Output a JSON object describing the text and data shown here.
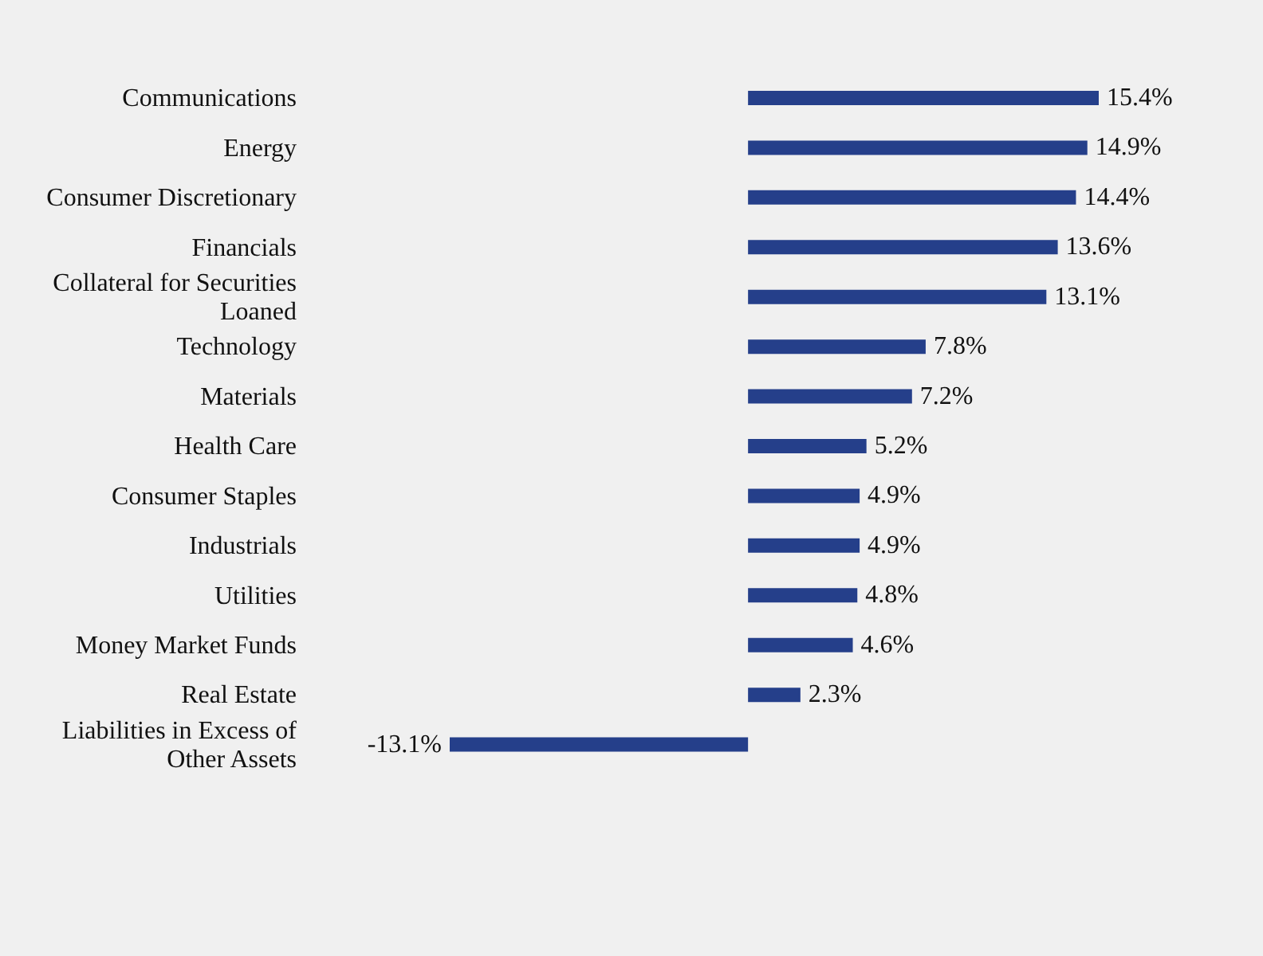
{
  "chart_data": {
    "type": "bar",
    "orientation": "horizontal",
    "categories": [
      "Communications",
      "Energy",
      "Consumer Discretionary",
      "Financials",
      "Collateral for Securities Loaned",
      "Technology",
      "Materials",
      "Health Care",
      "Consumer Staples",
      "Industrials",
      "Utilities",
      "Money Market Funds",
      "Real Estate",
      "Liabilities in Excess of Other Assets"
    ],
    "values": [
      15.4,
      14.9,
      14.4,
      13.6,
      13.1,
      7.8,
      7.2,
      5.2,
      4.9,
      4.9,
      4.8,
      4.6,
      2.3,
      -13.1
    ],
    "value_labels": [
      "15.4%",
      "14.9%",
      "14.4%",
      "13.6%",
      "13.1%",
      "7.8%",
      "7.2%",
      "5.2%",
      "4.9%",
      "4.9%",
      "4.8%",
      "4.6%",
      "2.3%",
      "-13.1%"
    ],
    "color": "#253f8a",
    "grid": false,
    "legend": false
  }
}
